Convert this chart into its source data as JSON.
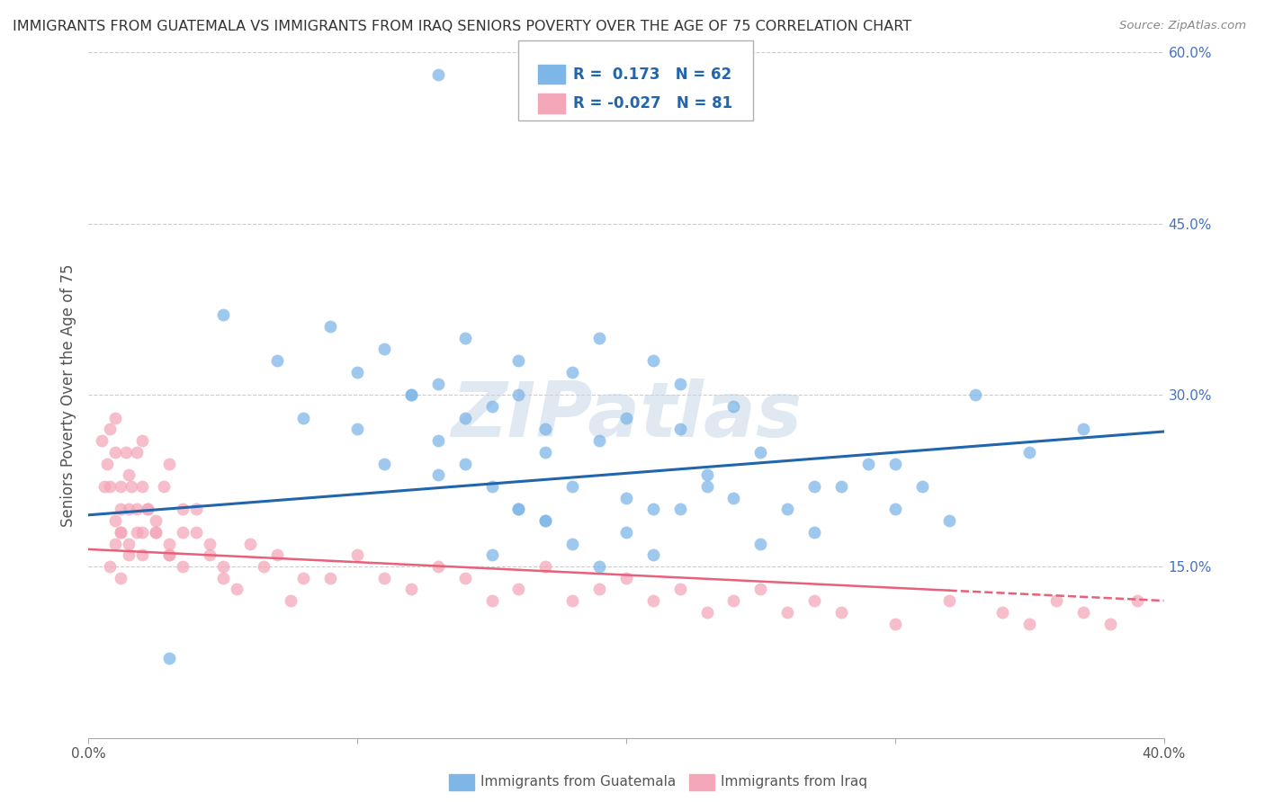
{
  "title": "IMMIGRANTS FROM GUATEMALA VS IMMIGRANTS FROM IRAQ SENIORS POVERTY OVER THE AGE OF 75 CORRELATION CHART",
  "source": "Source: ZipAtlas.com",
  "xlabel_left": "Immigrants from Guatemala",
  "xlabel_right": "Immigrants from Iraq",
  "ylabel": "Seniors Poverty Over the Age of 75",
  "xlim": [
    0.0,
    0.4
  ],
  "ylim": [
    0.0,
    0.6
  ],
  "y_ticks_right": [
    0.15,
    0.3,
    0.45,
    0.6
  ],
  "y_tick_labels_right": [
    "15.0%",
    "30.0%",
    "45.0%",
    "60.0%"
  ],
  "guatemala_color": "#7eb6e8",
  "iraq_color": "#f4a7b9",
  "trend_guatemala_color": "#2166ac",
  "trend_iraq_color": "#e8607a",
  "R_guatemala": 0.173,
  "N_guatemala": 62,
  "R_iraq": -0.027,
  "N_iraq": 81,
  "watermark": "ZIPatlas",
  "background_color": "#ffffff",
  "grid_color": "#cccccc",
  "trend_iraq_solid_end": 0.32,
  "guatemala_x": [
    0.13,
    0.05,
    0.09,
    0.07,
    0.1,
    0.12,
    0.14,
    0.11,
    0.13,
    0.16,
    0.08,
    0.1,
    0.15,
    0.13,
    0.12,
    0.11,
    0.14,
    0.17,
    0.19,
    0.21,
    0.18,
    0.16,
    0.2,
    0.22,
    0.15,
    0.17,
    0.13,
    0.19,
    0.22,
    0.24,
    0.16,
    0.18,
    0.14,
    0.2,
    0.17,
    0.21,
    0.23,
    0.25,
    0.27,
    0.24,
    0.26,
    0.28,
    0.3,
    0.32,
    0.29,
    0.27,
    0.25,
    0.23,
    0.22,
    0.2,
    0.18,
    0.21,
    0.19,
    0.17,
    0.16,
    0.15,
    0.35,
    0.37,
    0.33,
    0.31,
    0.03,
    0.3
  ],
  "guatemala_y": [
    0.58,
    0.37,
    0.36,
    0.33,
    0.32,
    0.3,
    0.35,
    0.34,
    0.31,
    0.33,
    0.28,
    0.27,
    0.29,
    0.26,
    0.3,
    0.24,
    0.28,
    0.27,
    0.35,
    0.33,
    0.32,
    0.3,
    0.28,
    0.31,
    0.22,
    0.25,
    0.23,
    0.26,
    0.27,
    0.29,
    0.2,
    0.22,
    0.24,
    0.21,
    0.19,
    0.2,
    0.23,
    0.25,
    0.22,
    0.21,
    0.2,
    0.22,
    0.2,
    0.19,
    0.24,
    0.18,
    0.17,
    0.22,
    0.2,
    0.18,
    0.17,
    0.16,
    0.15,
    0.19,
    0.2,
    0.16,
    0.25,
    0.27,
    0.3,
    0.22,
    0.07,
    0.24
  ],
  "iraq_x": [
    0.005,
    0.007,
    0.008,
    0.01,
    0.012,
    0.015,
    0.01,
    0.012,
    0.008,
    0.006,
    0.014,
    0.016,
    0.018,
    0.02,
    0.015,
    0.012,
    0.018,
    0.022,
    0.025,
    0.02,
    0.01,
    0.008,
    0.015,
    0.012,
    0.02,
    0.025,
    0.03,
    0.035,
    0.028,
    0.022,
    0.018,
    0.015,
    0.012,
    0.025,
    0.03,
    0.035,
    0.04,
    0.045,
    0.05,
    0.045,
    0.04,
    0.035,
    0.03,
    0.05,
    0.06,
    0.07,
    0.08,
    0.075,
    0.065,
    0.055,
    0.09,
    0.1,
    0.11,
    0.12,
    0.13,
    0.14,
    0.15,
    0.16,
    0.17,
    0.18,
    0.19,
    0.2,
    0.21,
    0.22,
    0.23,
    0.24,
    0.25,
    0.26,
    0.27,
    0.28,
    0.3,
    0.32,
    0.34,
    0.35,
    0.36,
    0.37,
    0.38,
    0.39,
    0.01,
    0.02,
    0.03
  ],
  "iraq_y": [
    0.26,
    0.24,
    0.22,
    0.25,
    0.2,
    0.23,
    0.19,
    0.18,
    0.27,
    0.22,
    0.25,
    0.22,
    0.2,
    0.18,
    0.17,
    0.22,
    0.25,
    0.2,
    0.18,
    0.22,
    0.17,
    0.15,
    0.2,
    0.18,
    0.16,
    0.19,
    0.17,
    0.15,
    0.22,
    0.2,
    0.18,
    0.16,
    0.14,
    0.18,
    0.16,
    0.2,
    0.18,
    0.16,
    0.14,
    0.17,
    0.2,
    0.18,
    0.16,
    0.15,
    0.17,
    0.16,
    0.14,
    0.12,
    0.15,
    0.13,
    0.14,
    0.16,
    0.14,
    0.13,
    0.15,
    0.14,
    0.12,
    0.13,
    0.15,
    0.12,
    0.13,
    0.14,
    0.12,
    0.13,
    0.11,
    0.12,
    0.13,
    0.11,
    0.12,
    0.11,
    0.1,
    0.12,
    0.11,
    0.1,
    0.12,
    0.11,
    0.1,
    0.12,
    0.28,
    0.26,
    0.24
  ]
}
